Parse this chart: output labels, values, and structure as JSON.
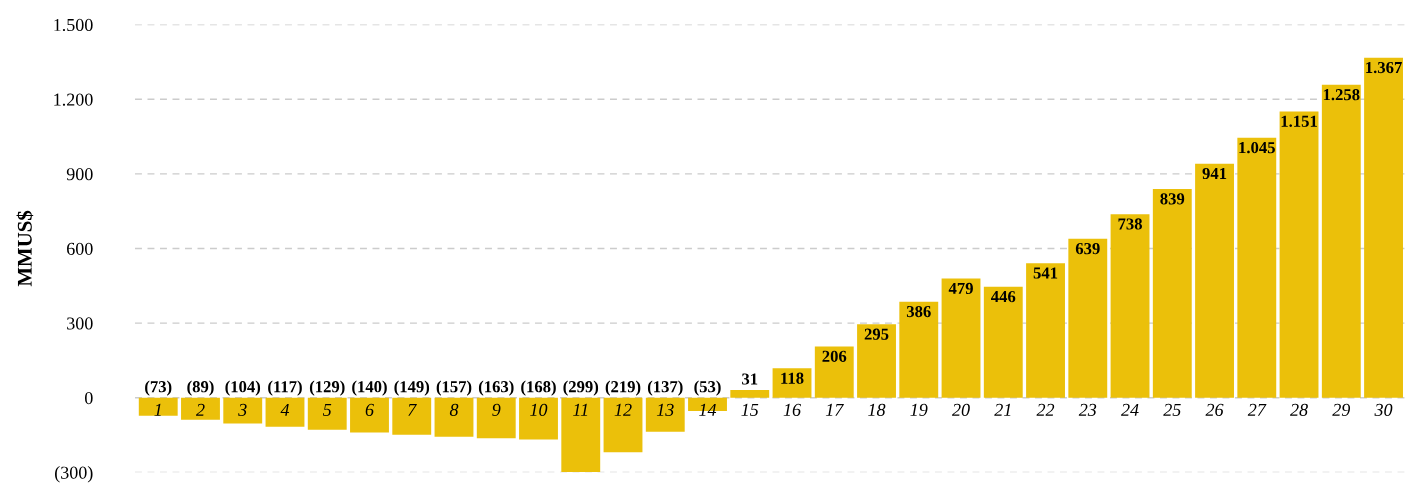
{
  "chart_data": {
    "type": "bar",
    "ylabel": "MMUS$",
    "categories": [
      "1",
      "2",
      "3",
      "4",
      "5",
      "6",
      "7",
      "8",
      "9",
      "10",
      "11",
      "12",
      "13",
      "14",
      "15",
      "16",
      "17",
      "18",
      "19",
      "20",
      "21",
      "22",
      "23",
      "24",
      "25",
      "26",
      "27",
      "28",
      "29",
      "30"
    ],
    "values": [
      -73,
      -89,
      -104,
      -117,
      -129,
      -140,
      -149,
      -157,
      -163,
      -168,
      -299,
      -219,
      -137,
      -53,
      31,
      118,
      206,
      295,
      386,
      479,
      446,
      541,
      639,
      738,
      839,
      941,
      1045,
      1151,
      1258,
      1367
    ],
    "value_labels": [
      "(73)",
      "(89)",
      "(104)",
      "(117)",
      "(129)",
      "(140)",
      "(149)",
      "(157)",
      "(163)",
      "(168)",
      "(299)",
      "(219)",
      "(137)",
      "(53)",
      "31",
      "118",
      "206",
      "295",
      "386",
      "479",
      "446",
      "541",
      "639",
      "738",
      "839",
      "941",
      "1.045",
      "1.151",
      "1.258",
      "1.367"
    ],
    "color": "#ebc00a",
    "ylim": [
      -300,
      1500
    ],
    "yticks": [
      {
        "value": -300,
        "label": "(300)"
      },
      0,
      300,
      600,
      900,
      {
        "value": 1200,
        "label": "1.200"
      },
      {
        "value": 1500,
        "label": "1.500"
      }
    ],
    "grid": "y"
  }
}
